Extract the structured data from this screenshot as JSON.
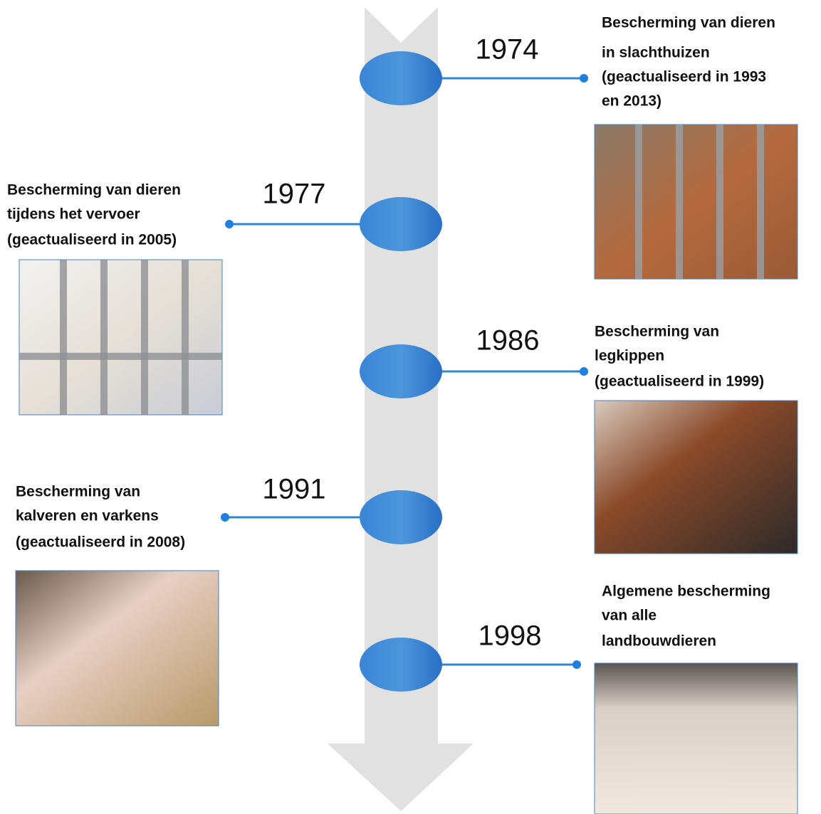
{
  "events": [
    {
      "year": "1974",
      "lines": [
        "Bescherming van dieren",
        "in slachthuizen",
        "(geactualiseerd in 1993",
        "en 2013)"
      ]
    },
    {
      "year": "1977",
      "lines": [
        "Bescherming van dieren",
        "tijdens het vervoer",
        "(geactualiseerd in 2005)"
      ]
    },
    {
      "year": "1986",
      "lines": [
        "Bescherming van",
        "legkippen",
        "(geactualiseerd in 1999)"
      ]
    },
    {
      "year": "1991",
      "lines": [
        "Bescherming van",
        "kalveren en varkens",
        "(geactualiseerd in 2008)"
      ]
    },
    {
      "year": "1998",
      "lines": [
        "Algemene bescherming",
        "van alle",
        "landbouwdieren"
      ]
    }
  ]
}
